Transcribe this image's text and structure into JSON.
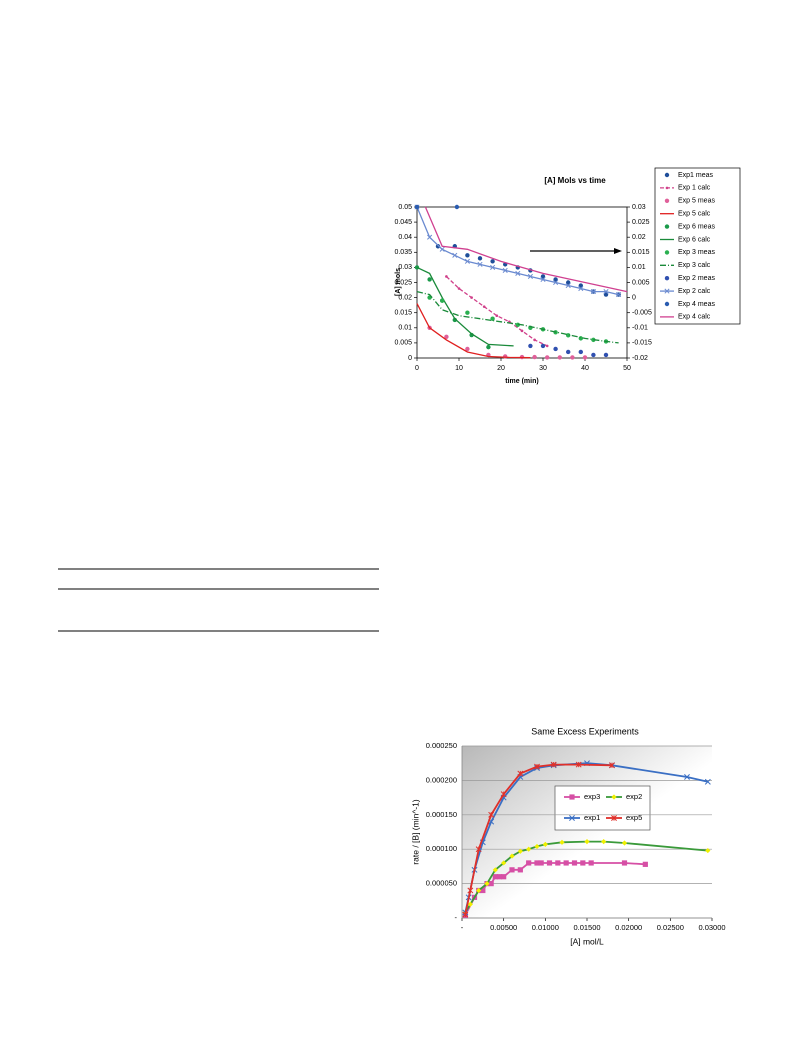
{
  "chart_data": [
    {
      "type": "line",
      "title": "[A] Mols vs time",
      "x_label": "time (min)",
      "y_label": "[A] mols",
      "xlim": [
        0,
        50
      ],
      "xticks": [
        0,
        10,
        20,
        30,
        40,
        50
      ],
      "ylim": [
        0,
        0.05
      ],
      "yticks": [
        0,
        0.005,
        0.01,
        0.015,
        0.02,
        0.025,
        0.03,
        0.035,
        0.04,
        0.045,
        0.05
      ],
      "y2lim": [
        -0.02,
        0.03
      ],
      "y2ticks": [
        -0.02,
        -0.015,
        -0.01,
        -0.005,
        0,
        0.005,
        0.01,
        0.015,
        0.02,
        0.025,
        0.03
      ],
      "legend": "right",
      "series": [
        {
          "name": "Exp1 meas",
          "color": "#1f4e9a",
          "line": "none",
          "marker": "circle",
          "x": [
            5,
            9,
            12,
            15,
            18,
            21,
            24,
            27,
            30,
            33,
            36,
            39,
            42,
            45,
            48
          ],
          "values": [
            0.037,
            0.037,
            0.034,
            0.033,
            0.032,
            0.031,
            0.03,
            0.029,
            0.027,
            0.026,
            0.025,
            0.024,
            0.022,
            0.021,
            0.021
          ]
        },
        {
          "name": "Exp 1 calc",
          "color": "#d0408a",
          "line": "dashed",
          "marker": "dot",
          "x": [
            7,
            10,
            13,
            16,
            19,
            22,
            25,
            28,
            31
          ],
          "values": [
            0.027,
            0.023,
            0.02,
            0.017,
            0.014,
            0.012,
            0.009,
            0.006,
            0.004
          ]
        },
        {
          "name": "Exp 5 meas",
          "color": "#e0609a",
          "line": "none",
          "marker": "circle",
          "x": [
            3,
            7,
            12,
            17,
            21,
            25,
            28,
            31,
            34,
            37,
            40
          ],
          "values": [
            0.01,
            0.007,
            0.003,
            0.001,
            0.0005,
            0.0003,
            0.0003,
            0.0002,
            0.0002,
            0.0002,
            0.0002
          ]
        },
        {
          "name": "Exp 5 calc",
          "color": "#e02020",
          "line": "solid",
          "marker": "none",
          "x": [
            0,
            3,
            7,
            12,
            17,
            22,
            27
          ],
          "values": [
            0.018,
            0.01,
            0.006,
            0.002,
            0.0005,
            0.0002,
            0.0001
          ]
        },
        {
          "name": "Exp 6 meas",
          "color": "#1a9a4a",
          "line": "none",
          "marker": "circle",
          "x": [
            0,
            3,
            6,
            9,
            13,
            17
          ],
          "values": [
            0.03,
            0.026,
            0.019,
            0.0126,
            0.0076,
            0.0036
          ]
        },
        {
          "name": "Exp 6 calc",
          "color": "#1a8a3a",
          "line": "solid",
          "marker": "none",
          "x": [
            0,
            3,
            6,
            9,
            13,
            17,
            23
          ],
          "values": [
            0.03,
            0.028,
            0.02,
            0.013,
            0.008,
            0.0045,
            0.004
          ]
        },
        {
          "name": "Exp 3 meas",
          "color": "#2ab050",
          "line": "none",
          "marker": "circle",
          "x": [
            3,
            6,
            12,
            18,
            24,
            27,
            30,
            33,
            36,
            39,
            42,
            45
          ],
          "values": [
            0.02,
            0.019,
            0.015,
            0.013,
            0.011,
            0.01,
            0.0095,
            0.0085,
            0.0075,
            0.0065,
            0.006,
            0.0055
          ]
        },
        {
          "name": "Exp 3 calc",
          "color": "#1a8a3a",
          "line": "dashdot",
          "marker": "none",
          "x": [
            0,
            3,
            6,
            10,
            15,
            20,
            25,
            30,
            35,
            40,
            45,
            48
          ],
          "values": [
            0.022,
            0.021,
            0.016,
            0.014,
            0.013,
            0.012,
            0.011,
            0.0095,
            0.008,
            0.0065,
            0.0055,
            0.005
          ]
        },
        {
          "name": "Exp 2 meas",
          "color": "#3050b0",
          "line": "none",
          "marker": "circle",
          "x": [
            27,
            30,
            33,
            36,
            39,
            42,
            45
          ],
          "values": [
            0.004,
            0.004,
            0.003,
            0.002,
            0.002,
            0.001,
            0.001
          ]
        },
        {
          "name": "Exp 2 calc",
          "color": "#6a8ad0",
          "line": "solid",
          "marker": "x",
          "x": [
            0,
            3,
            6,
            9,
            12,
            15,
            18,
            21,
            24,
            27,
            30,
            33,
            36,
            39,
            42,
            45,
            48
          ],
          "values": [
            0.05,
            0.04,
            0.036,
            0.034,
            0.032,
            0.031,
            0.03,
            0.029,
            0.028,
            0.027,
            0.026,
            0.025,
            0.024,
            0.023,
            0.022,
            0.022,
            0.021
          ]
        },
        {
          "name": "Exp 4 meas",
          "color": "#2a5cb0",
          "line": "none",
          "marker": "circle",
          "x": [
            0,
            9.5
          ],
          "values": [
            0.05,
            0.05
          ]
        },
        {
          "name": "Exp 4 calc",
          "color": "#d04090",
          "line": "solid",
          "marker": "none",
          "x": [
            2,
            6,
            12,
            20,
            30,
            40,
            50
          ],
          "values": [
            0.05,
            0.037,
            0.036,
            0.032,
            0.028,
            0.025,
            0.022
          ]
        }
      ]
    },
    {
      "type": "line",
      "title": "Same Excess Experiments",
      "x_label": "[A] mol/L",
      "y_label": "rate / [B]  (min^-1)",
      "xlim": [
        0,
        0.03
      ],
      "xticks": [
        {
          "value": 0,
          "label": "-"
        },
        {
          "value": 0.005,
          "label": "0.00500"
        },
        {
          "value": 0.01,
          "label": "0.01000"
        },
        {
          "value": 0.015,
          "label": "0.01500"
        },
        {
          "value": 0.02,
          "label": "0.02000"
        },
        {
          "value": 0.025,
          "label": "0.02500"
        },
        {
          "value": 0.03,
          "label": "0.03000"
        }
      ],
      "ylim": [
        0,
        0.00025
      ],
      "yticks": [
        {
          "value": 0,
          "label": "-"
        },
        {
          "value": 5e-05,
          "label": "0.000050"
        },
        {
          "value": 0.0001,
          "label": "0.000100"
        },
        {
          "value": 0.00015,
          "label": "0.000150"
        },
        {
          "value": 0.0002,
          "label": "0.000200"
        },
        {
          "value": 0.00025,
          "label": "0.000250"
        }
      ],
      "grid": true,
      "legend": "inside",
      "series": [
        {
          "name": "exp3",
          "color": "#d64fa5",
          "line": "solid",
          "marker": "square",
          "x": [
            0.0004,
            0.0015,
            0.002,
            0.0025,
            0.003,
            0.0035,
            0.004,
            0.0045,
            0.005,
            0.006,
            0.007,
            0.008,
            0.009,
            0.0095,
            0.0105,
            0.0115,
            0.0125,
            0.0135,
            0.0145,
            0.0155,
            0.0195,
            0.022
          ],
          "values": [
            4e-06,
            3e-05,
            4e-05,
            4e-05,
            5e-05,
            5e-05,
            6e-05,
            6e-05,
            6e-05,
            7e-05,
            7e-05,
            8e-05,
            8e-05,
            8e-05,
            8e-05,
            8e-05,
            8e-05,
            8e-05,
            8e-05,
            8e-05,
            8e-05,
            7.8e-05
          ]
        },
        {
          "name": "exp2",
          "color": "#3a9a3a",
          "marker_color": "#f0f000",
          "line": "solid",
          "marker": "diamond",
          "x": [
            0.0004,
            0.001,
            0.002,
            0.003,
            0.004,
            0.005,
            0.006,
            0.007,
            0.008,
            0.009,
            0.01,
            0.012,
            0.015,
            0.017,
            0.0195,
            0.0295
          ],
          "values": [
            8e-06,
            2e-05,
            4e-05,
            5e-05,
            7e-05,
            8e-05,
            9e-05,
            9.7e-05,
            0.0001,
            0.000104,
            0.000107,
            0.00011,
            0.000111,
            0.000111,
            0.000109,
            9.8e-05
          ]
        },
        {
          "name": "exp1",
          "color": "#3a6fc4",
          "line": "solid",
          "marker": "x",
          "x": [
            0.0004,
            0.0008,
            0.0015,
            0.0025,
            0.0035,
            0.005,
            0.007,
            0.009,
            0.011,
            0.015,
            0.018,
            0.027,
            0.0295
          ],
          "values": [
            8e-06,
            3e-05,
            7e-05,
            0.00011,
            0.00014,
            0.000175,
            0.000205,
            0.000218,
            0.000222,
            0.000225,
            0.000222,
            0.000205,
            0.000198
          ]
        },
        {
          "name": "exp5",
          "color": "#e0302a",
          "line": "solid",
          "marker": "star",
          "x": [
            0.0004,
            0.001,
            0.002,
            0.0035,
            0.005,
            0.007,
            0.009,
            0.011,
            0.014,
            0.018
          ],
          "values": [
            5e-06,
            4e-05,
            0.0001,
            0.00015,
            0.00018,
            0.00021,
            0.00022,
            0.000223,
            0.000223,
            0.000222
          ]
        }
      ]
    }
  ]
}
